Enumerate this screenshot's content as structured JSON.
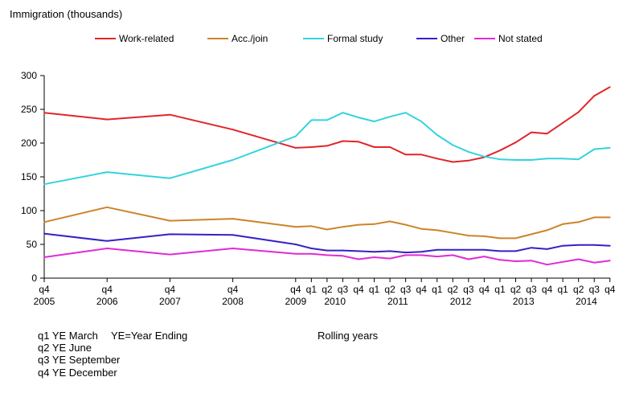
{
  "chart_data": {
    "type": "line",
    "ylabel": "Immigration (thousands)",
    "ylim": [
      0,
      300
    ],
    "yticks": [
      0,
      50,
      100,
      150,
      200,
      250,
      300
    ],
    "grid": false,
    "legend_position": "top",
    "x_year_labels": [
      "2005",
      "2006",
      "2007",
      "2008",
      "2009",
      "2010",
      "2011",
      "2012",
      "2013",
      "2014"
    ],
    "periods": [
      {
        "q": "q4",
        "year": 2005
      },
      {
        "q": "q4",
        "year": 2006
      },
      {
        "q": "q4",
        "year": 2007
      },
      {
        "q": "q4",
        "year": 2008
      },
      {
        "q": "q4",
        "year": 2009
      },
      {
        "q": "q1",
        "year": 2010
      },
      {
        "q": "q2",
        "year": 2010
      },
      {
        "q": "q3",
        "year": 2010
      },
      {
        "q": "q4",
        "year": 2010
      },
      {
        "q": "q1",
        "year": 2011
      },
      {
        "q": "q2",
        "year": 2011
      },
      {
        "q": "q3",
        "year": 2011
      },
      {
        "q": "q4",
        "year": 2011
      },
      {
        "q": "q1",
        "year": 2012
      },
      {
        "q": "q2",
        "year": 2012
      },
      {
        "q": "q3",
        "year": 2012
      },
      {
        "q": "q4",
        "year": 2012
      },
      {
        "q": "q1",
        "year": 2013
      },
      {
        "q": "q2",
        "year": 2013
      },
      {
        "q": "q3",
        "year": 2013
      },
      {
        "q": "q4",
        "year": 2013
      },
      {
        "q": "q1",
        "year": 2014
      },
      {
        "q": "q2",
        "year": 2014
      },
      {
        "q": "q3",
        "year": 2014
      },
      {
        "q": "q4",
        "year": 2014
      }
    ],
    "series": [
      {
        "name": "Work-related",
        "color": "#e0262a",
        "values": [
          245,
          235,
          242,
          220,
          193,
          194,
          196,
          203,
          202,
          194,
          194,
          183,
          183,
          177,
          172,
          174,
          179,
          189,
          201,
          216,
          214,
          230,
          246,
          270,
          283
        ]
      },
      {
        "name": "Acc./join",
        "color": "#cc8428",
        "values": [
          83,
          105,
          85,
          88,
          76,
          77,
          72,
          76,
          79,
          80,
          84,
          79,
          73,
          71,
          67,
          63,
          62,
          59,
          59,
          65,
          71,
          80,
          83,
          90,
          90
        ]
      },
      {
        "name": "Formal study",
        "color": "#33d3de",
        "values": [
          139,
          157,
          148,
          175,
          210,
          234,
          234,
          245,
          238,
          232,
          239,
          245,
          232,
          212,
          197,
          187,
          180,
          176,
          175,
          175,
          177,
          177,
          176,
          191,
          193
        ]
      },
      {
        "name": "Other",
        "color": "#3421c7",
        "values": [
          66,
          55,
          65,
          64,
          50,
          44,
          41,
          41,
          40,
          39,
          40,
          38,
          39,
          42,
          42,
          42,
          42,
          40,
          40,
          45,
          43,
          48,
          49,
          49,
          48
        ]
      },
      {
        "name": "Not stated",
        "color": "#e02ad5",
        "values": [
          31,
          44,
          35,
          44,
          36,
          36,
          34,
          33,
          28,
          31,
          29,
          34,
          34,
          32,
          34,
          28,
          32,
          27,
          25,
          26,
          20,
          24,
          28,
          23,
          26
        ]
      }
    ]
  },
  "notes": {
    "q1": "q1 YE March",
    "ye": "YE=Year Ending",
    "q2": "q2 YE June",
    "q3": "q3 YE September",
    "q4": "q4 YE December",
    "rolling": "Rolling years"
  }
}
